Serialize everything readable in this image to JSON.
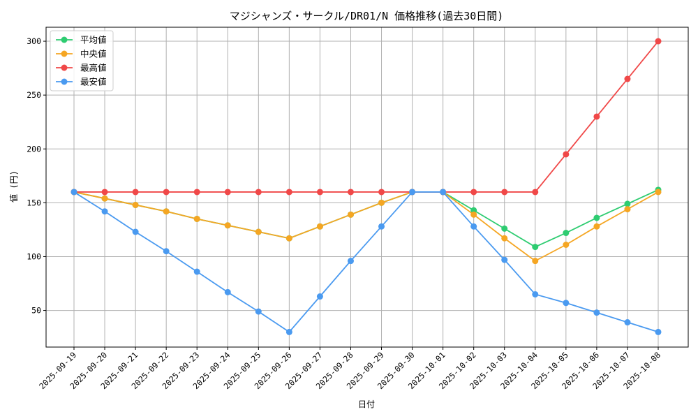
{
  "chart_data": {
    "type": "line",
    "title": "マジシャンズ・サークル/DR01/N 価格推移(過去30日間)",
    "xlabel": "日付",
    "ylabel": "値 (円)",
    "x": [
      "2025-09-19",
      "2025-09-20",
      "2025-09-21",
      "2025-09-22",
      "2025-09-23",
      "2025-09-24",
      "2025-09-25",
      "2025-09-26",
      "2025-09-27",
      "2025-09-28",
      "2025-09-29",
      "2025-09-30",
      "2025-10-01",
      "2025-10-02",
      "2025-10-03",
      "2025-10-04",
      "2025-10-05",
      "2025-10-06",
      "2025-10-07",
      "2025-10-08"
    ],
    "ylim": [
      16,
      313
    ],
    "yticks": [
      50,
      100,
      150,
      200,
      250,
      300
    ],
    "grid": true,
    "legend_position": "top-left",
    "series": [
      {
        "name": "平均値",
        "color": "#2ecc71",
        "values": [
          160,
          154,
          148,
          142,
          135,
          129,
          123,
          117,
          128,
          139,
          150,
          160,
          160,
          143,
          126,
          109,
          122,
          136,
          149,
          162
        ]
      },
      {
        "name": "中央値",
        "color": "#f5a623",
        "values": [
          160,
          154,
          148,
          142,
          135,
          129,
          123,
          117,
          128,
          139,
          150,
          160,
          160,
          139,
          117,
          96,
          111,
          128,
          144,
          160
        ]
      },
      {
        "name": "最高値",
        "color": "#f04848",
        "values": [
          160,
          160,
          160,
          160,
          160,
          160,
          160,
          160,
          160,
          160,
          160,
          160,
          160,
          160,
          160,
          160,
          195,
          230,
          265,
          300
        ]
      },
      {
        "name": "最安値",
        "color": "#4a9af0",
        "values": [
          160,
          142,
          123,
          105,
          86,
          67,
          49,
          30,
          63,
          96,
          128,
          160,
          160,
          128,
          97,
          65,
          57,
          48,
          39,
          30
        ]
      }
    ]
  }
}
